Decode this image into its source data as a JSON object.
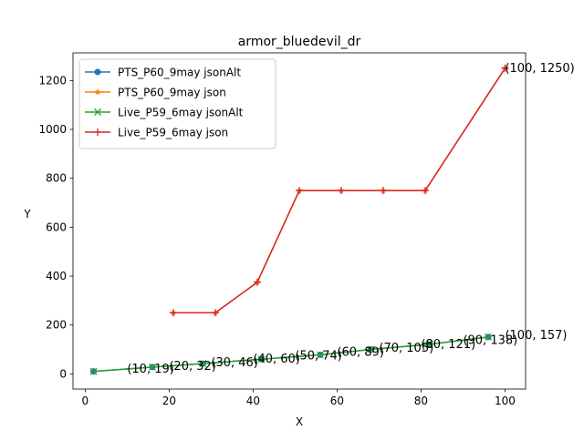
{
  "chart_data": {
    "type": "line",
    "title": "armor_bluedevil_dr",
    "xlabel": "X",
    "ylabel": "Y",
    "xlim": [
      -2.9,
      104.9
    ],
    "ylim": [
      -62.1,
      1313.1
    ],
    "xticks": [
      0,
      20,
      40,
      60,
      80,
      100
    ],
    "yticks": [
      0,
      200,
      400,
      600,
      800,
      1000,
      1200
    ],
    "grid": false,
    "legend_position": "upper-left",
    "series": [
      {
        "name": "PTS_P60_9may jsonAlt",
        "color": "#1f77b4",
        "marker": "circle",
        "x": [
          2,
          16,
          28,
          42,
          56,
          68,
          82,
          96
        ],
        "y": [
          10,
          28,
          42,
          60,
          78,
          100,
          121,
          151
        ]
      },
      {
        "name": "PTS_P60_9may json",
        "color": "#ff7f0e",
        "marker": "star",
        "x": [
          21,
          31,
          41,
          51,
          61,
          71,
          81,
          100
        ],
        "y": [
          250,
          250,
          375,
          750,
          750,
          750,
          750,
          1250
        ]
      },
      {
        "name": "Live_P59_6may jsonAlt",
        "color": "#2ca02c",
        "marker": "x",
        "x": [
          2,
          16,
          28,
          42,
          56,
          68,
          82,
          96
        ],
        "y": [
          10,
          28,
          42,
          60,
          78,
          100,
          121,
          151
        ]
      },
      {
        "name": "Live_P59_6may json",
        "color": "#d62728",
        "marker": "plus",
        "x": [
          21,
          31,
          41,
          51,
          61,
          71,
          81,
          100
        ],
        "y": [
          250,
          250,
          375,
          750,
          750,
          750,
          750,
          1250
        ]
      }
    ],
    "annotations": [
      {
        "text": "(10, 19)",
        "x": 10,
        "y": 19
      },
      {
        "text": "(20, 32)",
        "x": 20,
        "y": 32
      },
      {
        "text": "(30, 46)",
        "x": 30,
        "y": 46
      },
      {
        "text": "(40, 60)",
        "x": 40,
        "y": 60
      },
      {
        "text": "(50, 74)",
        "x": 50,
        "y": 74
      },
      {
        "text": "(60, 89)",
        "x": 60,
        "y": 89
      },
      {
        "text": "(70, 105)",
        "x": 70,
        "y": 105
      },
      {
        "text": "(80, 121)",
        "x": 80,
        "y": 121
      },
      {
        "text": "(90, 138)",
        "x": 90,
        "y": 138
      },
      {
        "text": "(100, 157)",
        "x": 100,
        "y": 157
      },
      {
        "text": "(100, 1250)",
        "x": 100,
        "y": 1250
      }
    ]
  }
}
